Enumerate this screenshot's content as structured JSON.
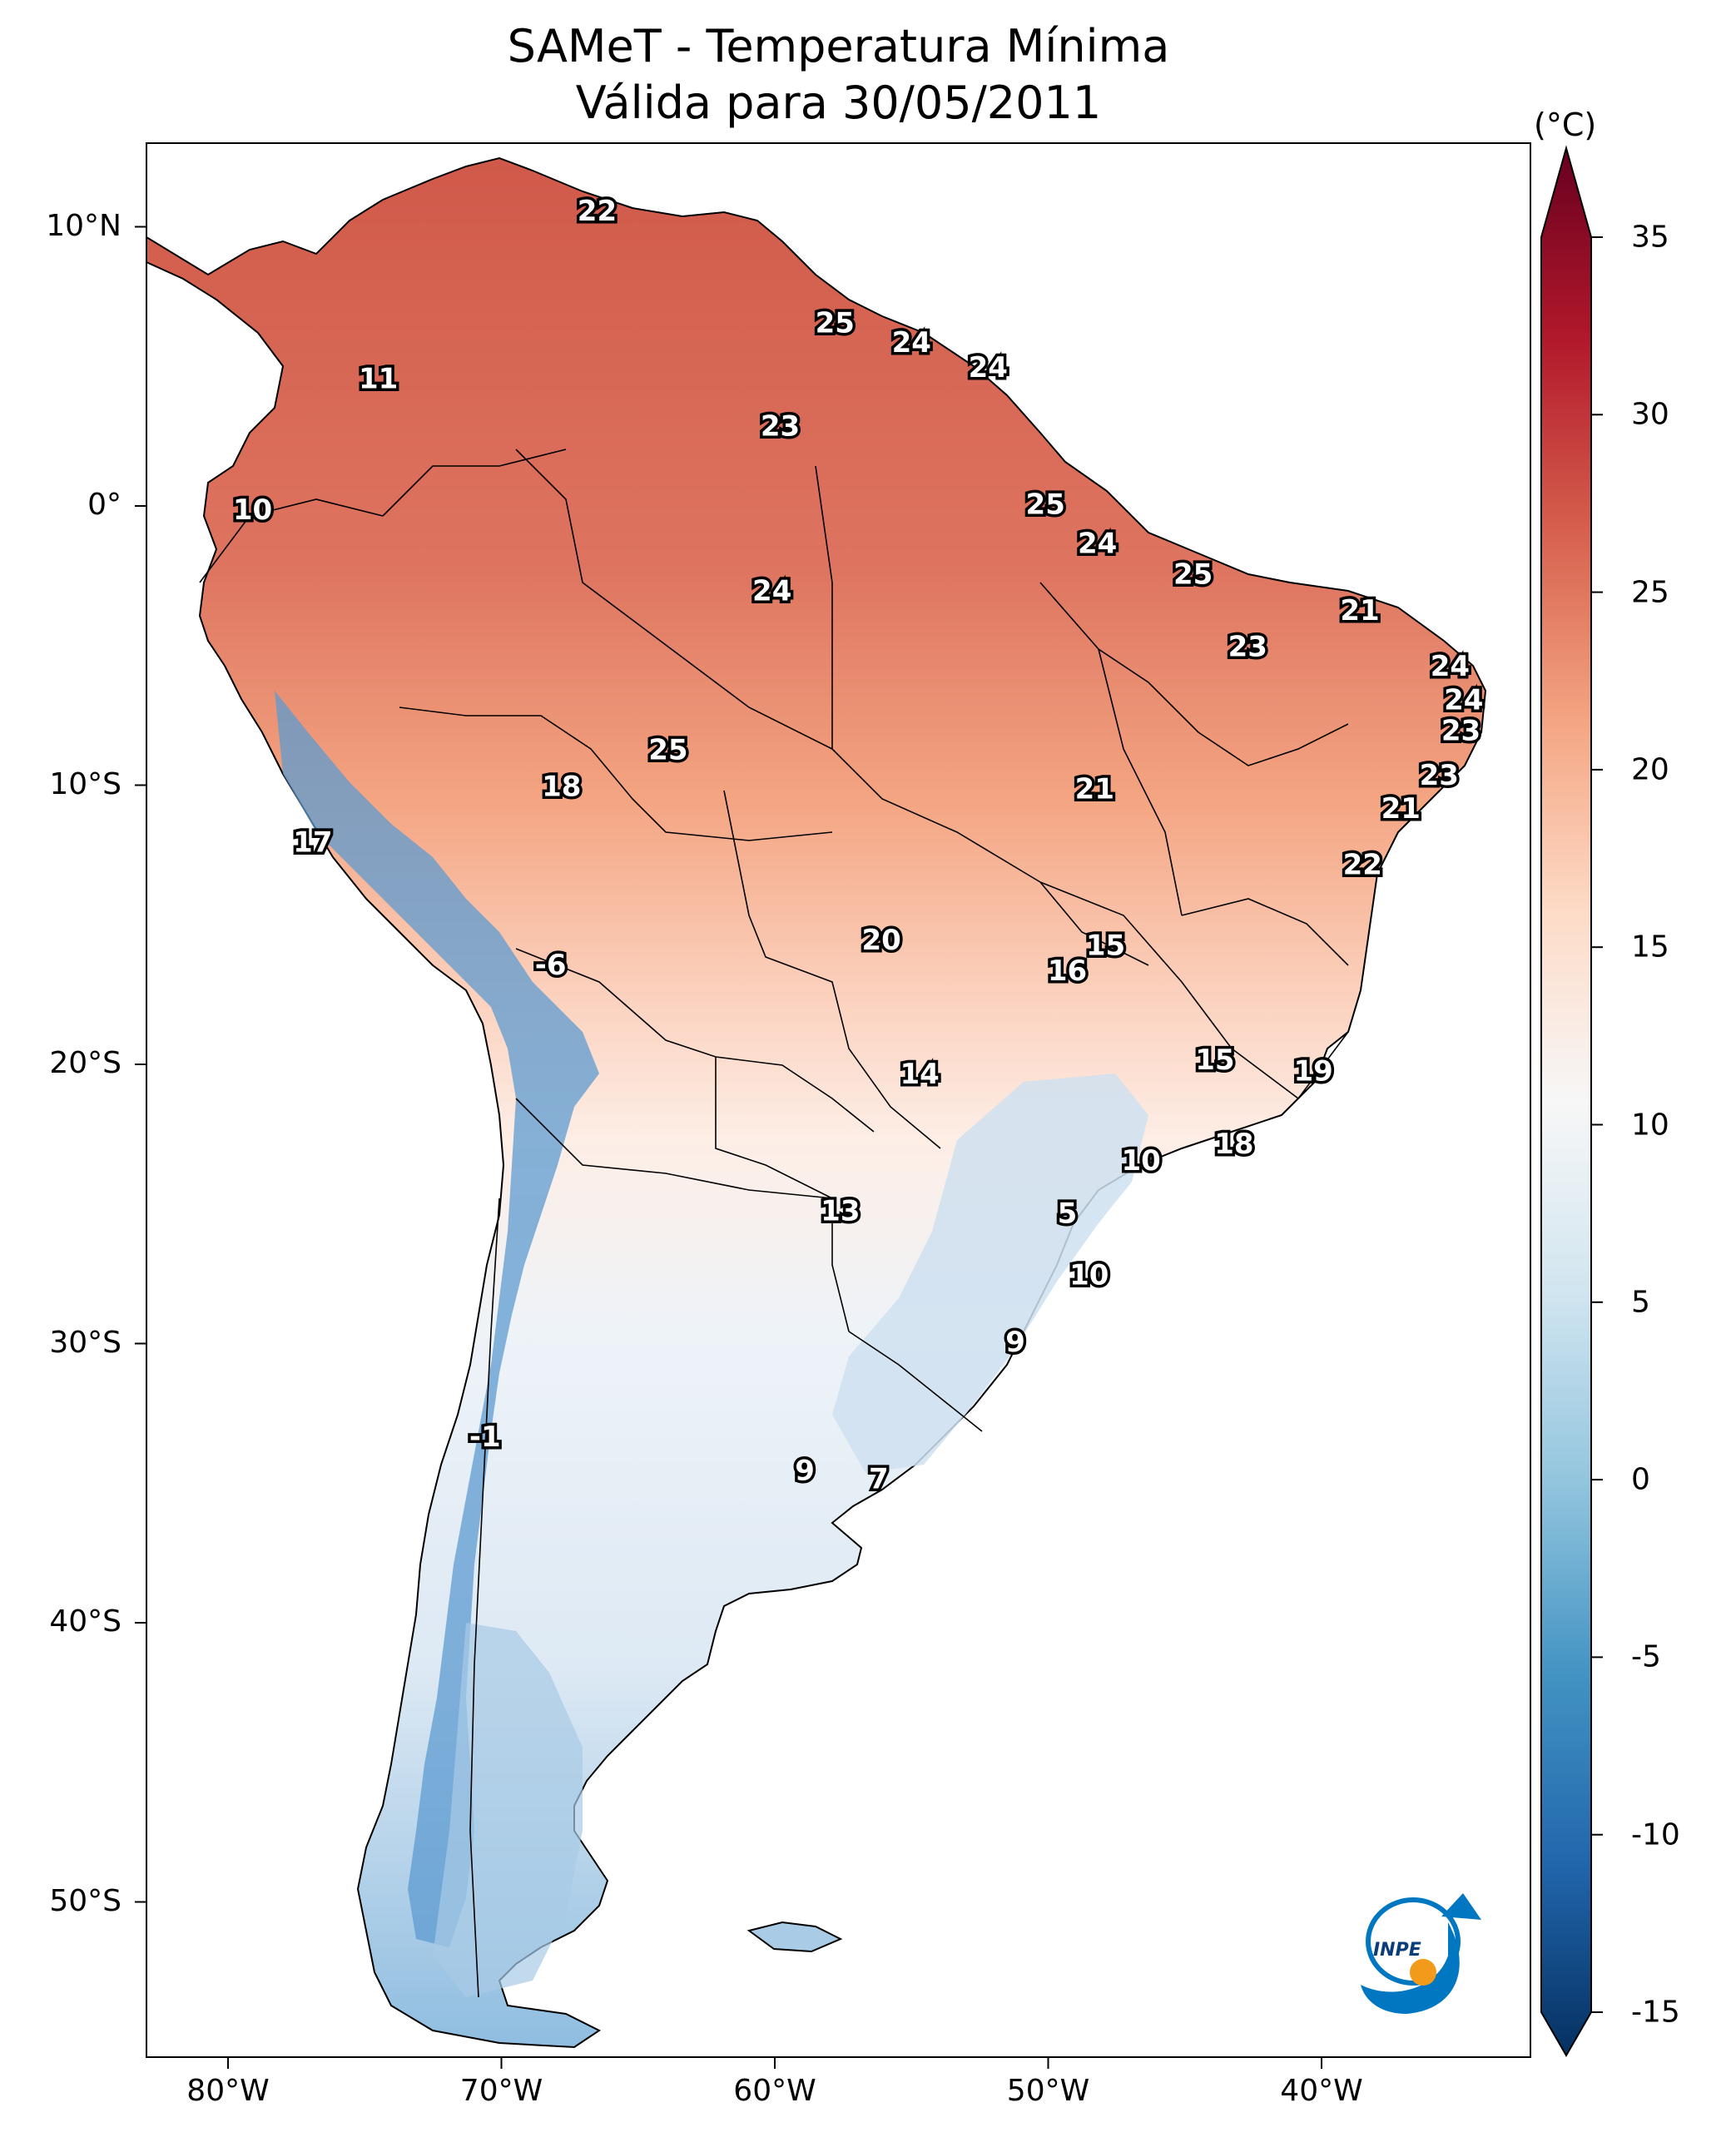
{
  "title": {
    "line1": "SAMeT - Temperatura Mínima",
    "line2": "Válida para 30/05/2011"
  },
  "colorbar": {
    "unit": "(°C)",
    "ticks": [
      "35",
      "30",
      "25",
      "20",
      "15",
      "10",
      "5",
      "0",
      "-5",
      "-10",
      "-15"
    ],
    "colors": [
      "#67001f",
      "#b2182b",
      "#d6604d",
      "#f4a582",
      "#fddbc7",
      "#f7f7f7",
      "#d1e5f0",
      "#92c5de",
      "#4393c3",
      "#2166ac",
      "#053061"
    ]
  },
  "axes": {
    "lat_labels": [
      "10°N",
      "0°",
      "10°S",
      "20°S",
      "30°S",
      "40°S",
      "50°S"
    ],
    "lon_labels": [
      "80°W",
      "70°W",
      "60°W",
      "50°W",
      "40°W"
    ]
  },
  "logo": {
    "text": "INPE",
    "color": "#0077c0",
    "dot_color": "#f29a1a"
  },
  "station_labels": [
    {
      "v": "22",
      "lon": -66.5,
      "lat": 10.5
    },
    {
      "v": "11",
      "lon": -74.5,
      "lat": 4.5
    },
    {
      "v": "10",
      "lon": -79.1,
      "lat": -0.2
    },
    {
      "v": "25",
      "lon": -57.8,
      "lat": 6.5
    },
    {
      "v": "24",
      "lon": -55.0,
      "lat": 5.8
    },
    {
      "v": "24",
      "lon": -52.2,
      "lat": 4.9
    },
    {
      "v": "23",
      "lon": -59.8,
      "lat": 2.8
    },
    {
      "v": "25",
      "lon": -50.1,
      "lat": 0.0
    },
    {
      "v": "24",
      "lon": -48.2,
      "lat": -1.4
    },
    {
      "v": "24",
      "lon": -60.1,
      "lat": -3.1
    },
    {
      "v": "25",
      "lon": -44.7,
      "lat": -2.5
    },
    {
      "v": "21",
      "lon": -38.6,
      "lat": -3.8
    },
    {
      "v": "23",
      "lon": -42.7,
      "lat": -5.1
    },
    {
      "v": "24",
      "lon": -35.3,
      "lat": -5.8
    },
    {
      "v": "24",
      "lon": -34.8,
      "lat": -7.0
    },
    {
      "v": "23",
      "lon": -34.9,
      "lat": -8.1
    },
    {
      "v": "25",
      "lon": -63.9,
      "lat": -8.8
    },
    {
      "v": "18",
      "lon": -67.8,
      "lat": -10.1
    },
    {
      "v": "21",
      "lon": -48.3,
      "lat": -10.2
    },
    {
      "v": "23",
      "lon": -35.7,
      "lat": -9.7
    },
    {
      "v": "21",
      "lon": -37.1,
      "lat": -10.9
    },
    {
      "v": "17",
      "lon": -76.9,
      "lat": -12.1
    },
    {
      "v": "22",
      "lon": -38.5,
      "lat": -12.9
    },
    {
      "v": "20",
      "lon": -56.1,
      "lat": -15.6
    },
    {
      "v": "15",
      "lon": -47.9,
      "lat": -15.8
    },
    {
      "v": "16",
      "lon": -49.3,
      "lat": -16.7
    },
    {
      "v": "-6",
      "lon": -68.2,
      "lat": -16.5
    },
    {
      "v": "14",
      "lon": -54.7,
      "lat": -20.4
    },
    {
      "v": "15",
      "lon": -43.9,
      "lat": -19.9
    },
    {
      "v": "19",
      "lon": -40.3,
      "lat": -20.3
    },
    {
      "v": "18",
      "lon": -43.2,
      "lat": -22.9
    },
    {
      "v": "10",
      "lon": -46.6,
      "lat": -23.5
    },
    {
      "v": "13",
      "lon": -57.6,
      "lat": -25.3
    },
    {
      "v": "5",
      "lon": -49.3,
      "lat": -25.4
    },
    {
      "v": "10",
      "lon": -48.5,
      "lat": -27.6
    },
    {
      "v": "9",
      "lon": -51.2,
      "lat": -30.0
    },
    {
      "v": "-1",
      "lon": -70.6,
      "lat": -33.4
    },
    {
      "v": "9",
      "lon": -58.9,
      "lat": -34.6
    },
    {
      "v": "7",
      "lon": -56.2,
      "lat": -34.9
    }
  ]
}
